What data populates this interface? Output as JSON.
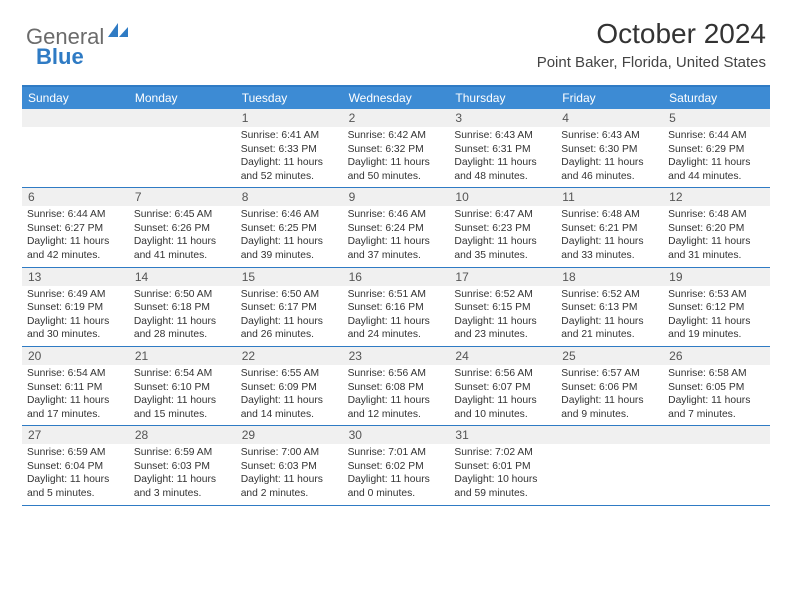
{
  "logo": {
    "text1": "General",
    "text2": "Blue"
  },
  "title": "October 2024",
  "location": "Point Baker, Florida, United States",
  "colors": {
    "header_bg": "#3d8bd4",
    "border": "#2f7bc4",
    "numrow_bg": "#f0f0f0",
    "logo_gray": "#6b6b6b",
    "logo_blue": "#2f7bc4",
    "text": "#333333"
  },
  "day_names": [
    "Sunday",
    "Monday",
    "Tuesday",
    "Wednesday",
    "Thursday",
    "Friday",
    "Saturday"
  ],
  "weeks": [
    [
      {
        "n": "",
        "sr": "",
        "ss": "",
        "dl": ""
      },
      {
        "n": "",
        "sr": "",
        "ss": "",
        "dl": ""
      },
      {
        "n": "1",
        "sr": "Sunrise: 6:41 AM",
        "ss": "Sunset: 6:33 PM",
        "dl": "Daylight: 11 hours and 52 minutes."
      },
      {
        "n": "2",
        "sr": "Sunrise: 6:42 AM",
        "ss": "Sunset: 6:32 PM",
        "dl": "Daylight: 11 hours and 50 minutes."
      },
      {
        "n": "3",
        "sr": "Sunrise: 6:43 AM",
        "ss": "Sunset: 6:31 PM",
        "dl": "Daylight: 11 hours and 48 minutes."
      },
      {
        "n": "4",
        "sr": "Sunrise: 6:43 AM",
        "ss": "Sunset: 6:30 PM",
        "dl": "Daylight: 11 hours and 46 minutes."
      },
      {
        "n": "5",
        "sr": "Sunrise: 6:44 AM",
        "ss": "Sunset: 6:29 PM",
        "dl": "Daylight: 11 hours and 44 minutes."
      }
    ],
    [
      {
        "n": "6",
        "sr": "Sunrise: 6:44 AM",
        "ss": "Sunset: 6:27 PM",
        "dl": "Daylight: 11 hours and 42 minutes."
      },
      {
        "n": "7",
        "sr": "Sunrise: 6:45 AM",
        "ss": "Sunset: 6:26 PM",
        "dl": "Daylight: 11 hours and 41 minutes."
      },
      {
        "n": "8",
        "sr": "Sunrise: 6:46 AM",
        "ss": "Sunset: 6:25 PM",
        "dl": "Daylight: 11 hours and 39 minutes."
      },
      {
        "n": "9",
        "sr": "Sunrise: 6:46 AM",
        "ss": "Sunset: 6:24 PM",
        "dl": "Daylight: 11 hours and 37 minutes."
      },
      {
        "n": "10",
        "sr": "Sunrise: 6:47 AM",
        "ss": "Sunset: 6:23 PM",
        "dl": "Daylight: 11 hours and 35 minutes."
      },
      {
        "n": "11",
        "sr": "Sunrise: 6:48 AM",
        "ss": "Sunset: 6:21 PM",
        "dl": "Daylight: 11 hours and 33 minutes."
      },
      {
        "n": "12",
        "sr": "Sunrise: 6:48 AM",
        "ss": "Sunset: 6:20 PM",
        "dl": "Daylight: 11 hours and 31 minutes."
      }
    ],
    [
      {
        "n": "13",
        "sr": "Sunrise: 6:49 AM",
        "ss": "Sunset: 6:19 PM",
        "dl": "Daylight: 11 hours and 30 minutes."
      },
      {
        "n": "14",
        "sr": "Sunrise: 6:50 AM",
        "ss": "Sunset: 6:18 PM",
        "dl": "Daylight: 11 hours and 28 minutes."
      },
      {
        "n": "15",
        "sr": "Sunrise: 6:50 AM",
        "ss": "Sunset: 6:17 PM",
        "dl": "Daylight: 11 hours and 26 minutes."
      },
      {
        "n": "16",
        "sr": "Sunrise: 6:51 AM",
        "ss": "Sunset: 6:16 PM",
        "dl": "Daylight: 11 hours and 24 minutes."
      },
      {
        "n": "17",
        "sr": "Sunrise: 6:52 AM",
        "ss": "Sunset: 6:15 PM",
        "dl": "Daylight: 11 hours and 23 minutes."
      },
      {
        "n": "18",
        "sr": "Sunrise: 6:52 AM",
        "ss": "Sunset: 6:13 PM",
        "dl": "Daylight: 11 hours and 21 minutes."
      },
      {
        "n": "19",
        "sr": "Sunrise: 6:53 AM",
        "ss": "Sunset: 6:12 PM",
        "dl": "Daylight: 11 hours and 19 minutes."
      }
    ],
    [
      {
        "n": "20",
        "sr": "Sunrise: 6:54 AM",
        "ss": "Sunset: 6:11 PM",
        "dl": "Daylight: 11 hours and 17 minutes."
      },
      {
        "n": "21",
        "sr": "Sunrise: 6:54 AM",
        "ss": "Sunset: 6:10 PM",
        "dl": "Daylight: 11 hours and 15 minutes."
      },
      {
        "n": "22",
        "sr": "Sunrise: 6:55 AM",
        "ss": "Sunset: 6:09 PM",
        "dl": "Daylight: 11 hours and 14 minutes."
      },
      {
        "n": "23",
        "sr": "Sunrise: 6:56 AM",
        "ss": "Sunset: 6:08 PM",
        "dl": "Daylight: 11 hours and 12 minutes."
      },
      {
        "n": "24",
        "sr": "Sunrise: 6:56 AM",
        "ss": "Sunset: 6:07 PM",
        "dl": "Daylight: 11 hours and 10 minutes."
      },
      {
        "n": "25",
        "sr": "Sunrise: 6:57 AM",
        "ss": "Sunset: 6:06 PM",
        "dl": "Daylight: 11 hours and 9 minutes."
      },
      {
        "n": "26",
        "sr": "Sunrise: 6:58 AM",
        "ss": "Sunset: 6:05 PM",
        "dl": "Daylight: 11 hours and 7 minutes."
      }
    ],
    [
      {
        "n": "27",
        "sr": "Sunrise: 6:59 AM",
        "ss": "Sunset: 6:04 PM",
        "dl": "Daylight: 11 hours and 5 minutes."
      },
      {
        "n": "28",
        "sr": "Sunrise: 6:59 AM",
        "ss": "Sunset: 6:03 PM",
        "dl": "Daylight: 11 hours and 3 minutes."
      },
      {
        "n": "29",
        "sr": "Sunrise: 7:00 AM",
        "ss": "Sunset: 6:03 PM",
        "dl": "Daylight: 11 hours and 2 minutes."
      },
      {
        "n": "30",
        "sr": "Sunrise: 7:01 AM",
        "ss": "Sunset: 6:02 PM",
        "dl": "Daylight: 11 hours and 0 minutes."
      },
      {
        "n": "31",
        "sr": "Sunrise: 7:02 AM",
        "ss": "Sunset: 6:01 PM",
        "dl": "Daylight: 10 hours and 59 minutes."
      },
      {
        "n": "",
        "sr": "",
        "ss": "",
        "dl": ""
      },
      {
        "n": "",
        "sr": "",
        "ss": "",
        "dl": ""
      }
    ]
  ]
}
